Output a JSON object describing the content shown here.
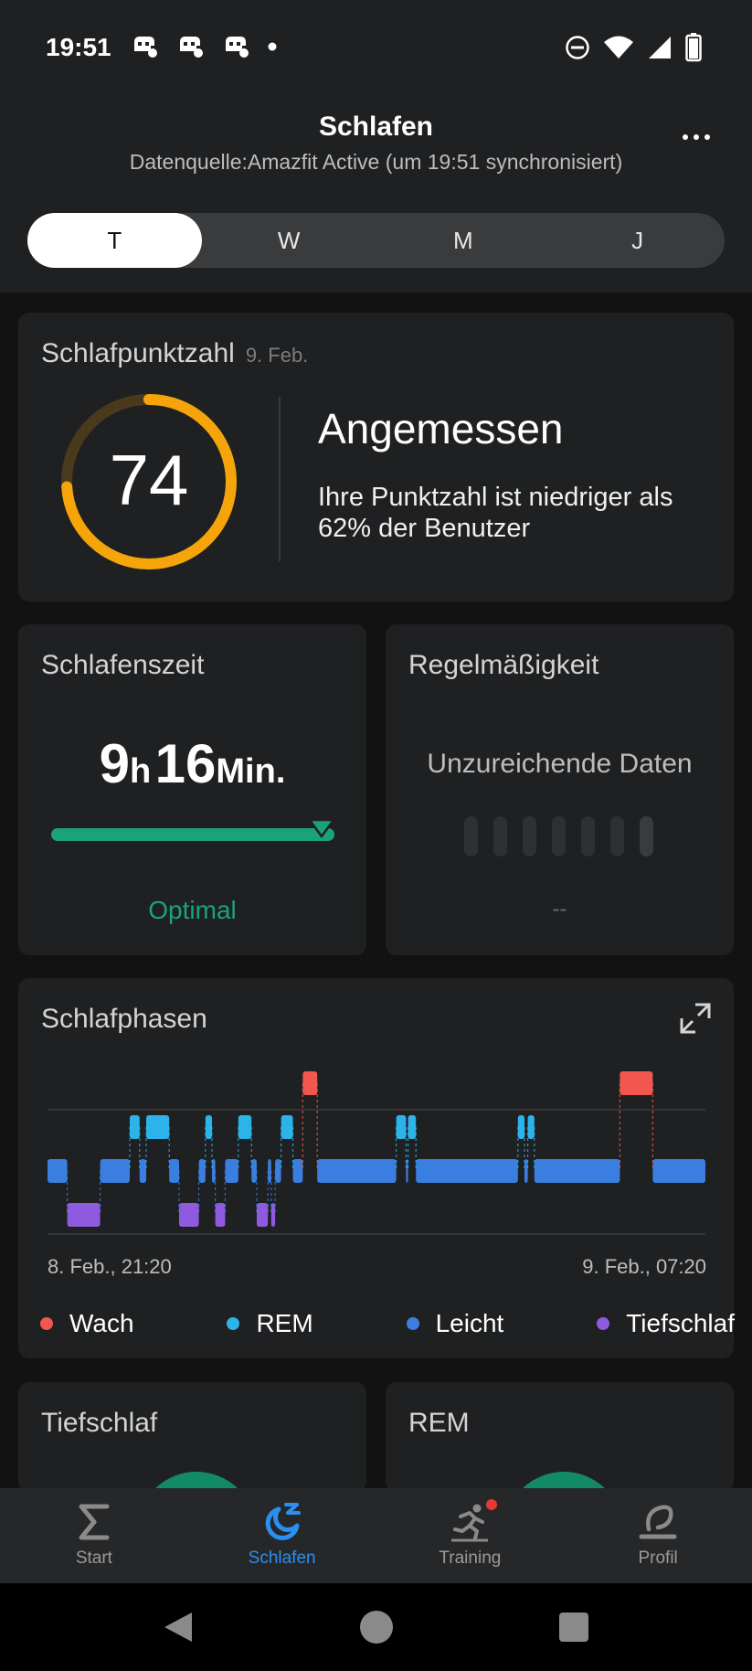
{
  "status": {
    "time": "19:51"
  },
  "header": {
    "title": "Schlafen",
    "subtitle": "Datenquelle:Amazfit Active (um 19:51 synchronisiert)"
  },
  "tabs": [
    {
      "label": "T",
      "active": true
    },
    {
      "label": "W",
      "active": false
    },
    {
      "label": "M",
      "active": false
    },
    {
      "label": "J",
      "active": false
    }
  ],
  "score_card": {
    "title": "Schlafpunktzahl",
    "date": "9. Feb.",
    "score": "74",
    "score_fraction": 0.74,
    "label": "Angemessen",
    "description": "Ihre Punktzahl ist niedriger als 62% der Benutzer",
    "accent": "#f5a50a"
  },
  "sleep_time_card": {
    "title": "Schlafenszeit",
    "hours": "9",
    "hours_unit": "h",
    "minutes": "16",
    "minutes_unit": "Min.",
    "status": "Optimal",
    "color": "#1aa37a"
  },
  "regularity_card": {
    "title": "Regelmäßigkeit",
    "message": "Unzureichende Daten",
    "value": "--"
  },
  "phases_card": {
    "title": "Schlafphasen",
    "start_label": "8. Feb., 21:20",
    "end_label": "9. Feb., 07:20",
    "legend": [
      {
        "label": "Wach",
        "color": "#f2574f"
      },
      {
        "label": "REM",
        "color": "#2cb3ea"
      },
      {
        "label": "Leicht",
        "color": "#3a7fe0"
      },
      {
        "label": "Tiefschlaf",
        "color": "#8e5be0"
      }
    ]
  },
  "chart_data": {
    "type": "area",
    "stages": [
      "Wach",
      "REM",
      "Leicht",
      "Tiefschlaf"
    ],
    "x_range": [
      "8. Feb., 21:20",
      "9. Feb., 07:20"
    ],
    "segments": [
      {
        "stage": "Leicht",
        "start": 0.0,
        "end": 0.03
      },
      {
        "stage": "Tiefschlaf",
        "start": 0.03,
        "end": 0.08
      },
      {
        "stage": "Leicht",
        "start": 0.08,
        "end": 0.125
      },
      {
        "stage": "REM",
        "start": 0.125,
        "end": 0.14
      },
      {
        "stage": "Leicht",
        "start": 0.14,
        "end": 0.15
      },
      {
        "stage": "REM",
        "start": 0.15,
        "end": 0.185
      },
      {
        "stage": "Leicht",
        "start": 0.185,
        "end": 0.2
      },
      {
        "stage": "Tiefschlaf",
        "start": 0.2,
        "end": 0.23
      },
      {
        "stage": "Leicht",
        "start": 0.23,
        "end": 0.24
      },
      {
        "stage": "REM",
        "start": 0.24,
        "end": 0.25
      },
      {
        "stage": "Leicht",
        "start": 0.25,
        "end": 0.255
      },
      {
        "stage": "Tiefschlaf",
        "start": 0.255,
        "end": 0.27
      },
      {
        "stage": "Leicht",
        "start": 0.27,
        "end": 0.29
      },
      {
        "stage": "REM",
        "start": 0.29,
        "end": 0.31
      },
      {
        "stage": "Leicht",
        "start": 0.31,
        "end": 0.318
      },
      {
        "stage": "Tiefschlaf",
        "start": 0.318,
        "end": 0.335
      },
      {
        "stage": "Leicht",
        "start": 0.335,
        "end": 0.34
      },
      {
        "stage": "Tiefschlaf",
        "start": 0.34,
        "end": 0.346
      },
      {
        "stage": "Leicht",
        "start": 0.346,
        "end": 0.355
      },
      {
        "stage": "REM",
        "start": 0.355,
        "end": 0.373
      },
      {
        "stage": "Leicht",
        "start": 0.373,
        "end": 0.388
      },
      {
        "stage": "Wach",
        "start": 0.388,
        "end": 0.41
      },
      {
        "stage": "Leicht",
        "start": 0.41,
        "end": 0.53
      },
      {
        "stage": "REM",
        "start": 0.53,
        "end": 0.545
      },
      {
        "stage": "Leicht",
        "start": 0.545,
        "end": 0.548
      },
      {
        "stage": "REM",
        "start": 0.548,
        "end": 0.56
      },
      {
        "stage": "Leicht",
        "start": 0.56,
        "end": 0.715
      },
      {
        "stage": "REM",
        "start": 0.715,
        "end": 0.725
      },
      {
        "stage": "Leicht",
        "start": 0.725,
        "end": 0.73
      },
      {
        "stage": "REM",
        "start": 0.73,
        "end": 0.74
      },
      {
        "stage": "Leicht",
        "start": 0.74,
        "end": 0.87
      },
      {
        "stage": "Wach",
        "start": 0.87,
        "end": 0.92
      },
      {
        "stage": "Leicht",
        "start": 0.92,
        "end": 1.0
      }
    ]
  },
  "bottom_cards": [
    {
      "title": "Tiefschlaf"
    },
    {
      "title": "REM"
    }
  ],
  "bottom_nav": [
    {
      "label": "Start",
      "icon": "sigma-icon",
      "active": false
    },
    {
      "label": "Schlafen",
      "icon": "sleep-moon-icon",
      "active": true
    },
    {
      "label": "Training",
      "icon": "running-icon",
      "active": false
    },
    {
      "label": "Profil",
      "icon": "profile-icon",
      "active": false
    }
  ]
}
